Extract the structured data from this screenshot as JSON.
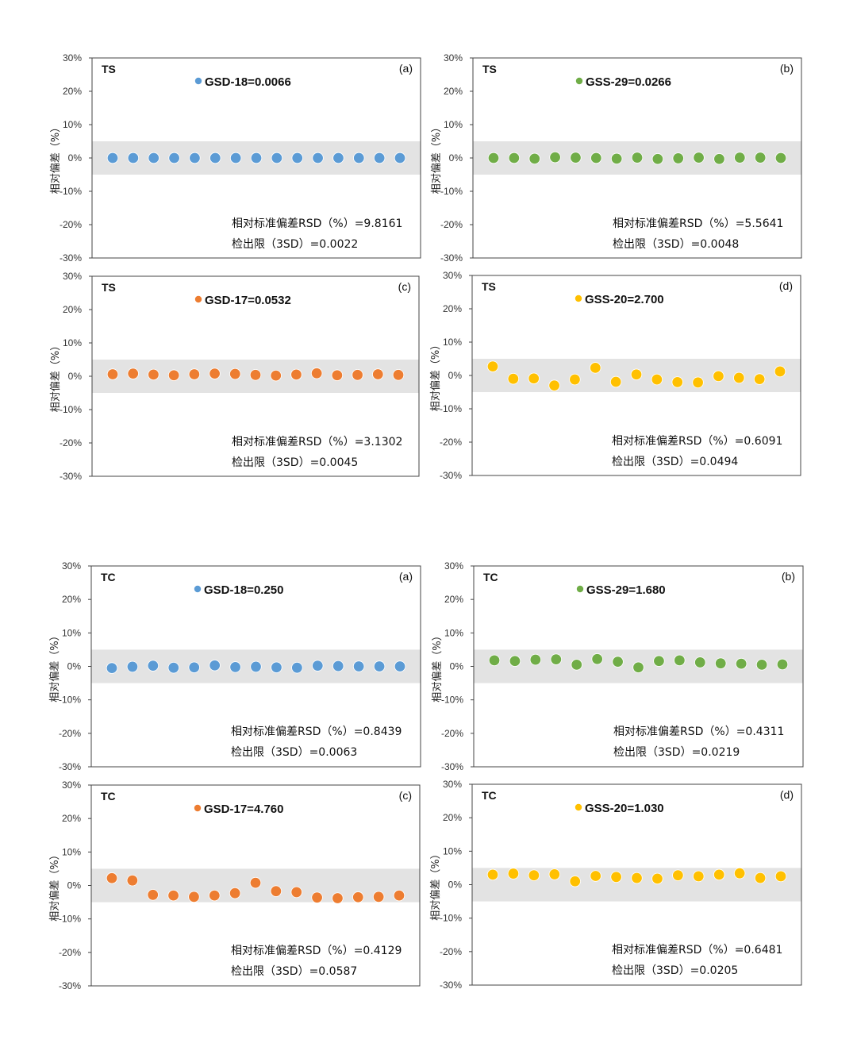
{
  "chart_data": [
    {
      "type": "scatter",
      "group": "TS",
      "panel": "(a)",
      "sample": "GSD-18=0.0066",
      "color": "#5B9BD5",
      "ylabel": "相对偏差（%）",
      "ylim": [
        -30,
        30
      ],
      "yticks": [
        "30%",
        "20%",
        "10%",
        "0%",
        "-10%",
        "-20%",
        "-30%"
      ],
      "band": [
        -5,
        5
      ],
      "values": [
        0,
        0,
        0,
        0,
        0,
        0,
        0,
        0,
        0,
        0,
        0,
        0,
        0,
        0,
        0
      ],
      "rsd_text": "相对标准偏差RSD（%）=9.8161",
      "lod_text": "检出限（3SD）=0.0022"
    },
    {
      "type": "scatter",
      "group": "TS",
      "panel": "(b)",
      "sample": "GSS-29=0.0266",
      "color": "#70AD47",
      "ylabel": "相对偏差（%）",
      "ylim": [
        -30,
        30
      ],
      "yticks": [
        "30%",
        "20%",
        "10%",
        "0%",
        "-10%",
        "-20%",
        "-30%"
      ],
      "band": [
        -5,
        5
      ],
      "values": [
        0,
        0,
        -0.2,
        0.2,
        0.1,
        0,
        -0.2,
        0.1,
        -0.3,
        -0.1,
        0.1,
        -0.3,
        0.1,
        0.1,
        0
      ],
      "rsd_text": "相对标准偏差RSD（%）=5.5641",
      "lod_text": "检出限（3SD）=0.0048"
    },
    {
      "type": "scatter",
      "group": "TS",
      "panel": "(c)",
      "sample": "GSD-17=0.0532",
      "color": "#ED7D31",
      "ylabel": "相对偏差（%）",
      "ylim": [
        -30,
        30
      ],
      "yticks": [
        "30%",
        "20%",
        "10%",
        "0%",
        "-10%",
        "-20%",
        "-30%"
      ],
      "band": [
        -5,
        5
      ],
      "values": [
        0.6,
        0.8,
        0.5,
        0.3,
        0.6,
        0.8,
        0.7,
        0.4,
        0.2,
        0.5,
        0.9,
        0.3,
        0.4,
        0.6,
        0.4
      ],
      "rsd_text": "相对标准偏差RSD（%）=3.1302",
      "lod_text": "检出限（3SD）=0.0045"
    },
    {
      "type": "scatter",
      "group": "TS",
      "panel": "(d)",
      "sample": "GSS-20=2.700",
      "color": "#FFC000",
      "ylabel": "相对偏差（%）",
      "ylim": [
        -30,
        30
      ],
      "yticks": [
        "30%",
        "20%",
        "10%",
        "0%",
        "-10%",
        "-20%",
        "-30%"
      ],
      "band": [
        -5,
        5
      ],
      "values": [
        2.7,
        -1.0,
        -0.9,
        -3.0,
        -1.2,
        2.3,
        -1.9,
        0.3,
        -1.2,
        -2.0,
        -2.1,
        -0.2,
        -0.7,
        -1.1,
        1.2
      ],
      "rsd_text": "相对标准偏差RSD（%）=0.6091",
      "lod_text": "检出限（3SD）=0.0494"
    },
    {
      "type": "scatter",
      "group": "TC",
      "panel": "(a)",
      "sample": "GSD-18=0.250",
      "color": "#5B9BD5",
      "ylabel": "相对偏差（%）",
      "ylim": [
        -30,
        30
      ],
      "yticks": [
        "30%",
        "20%",
        "10%",
        "0%",
        "-10%",
        "-20%",
        "-30%"
      ],
      "band": [
        -5,
        5
      ],
      "values": [
        -0.5,
        -0.1,
        0.2,
        -0.4,
        -0.3,
        0.3,
        -0.2,
        -0.1,
        -0.3,
        -0.4,
        0.2,
        0.1,
        0,
        0,
        0
      ],
      "rsd_text": "相对标准偏差RSD（%）=0.8439",
      "lod_text": "检出限（3SD）=0.0063"
    },
    {
      "type": "scatter",
      "group": "TC",
      "panel": "(b)",
      "sample": "GSS-29=1.680",
      "color": "#70AD47",
      "ylabel": "相对偏差（%）",
      "ylim": [
        -30,
        30
      ],
      "yticks": [
        "30%",
        "20%",
        "10%",
        "0%",
        "-10%",
        "-20%",
        "-30%"
      ],
      "band": [
        -5,
        5
      ],
      "values": [
        1.8,
        1.6,
        2.0,
        2.1,
        0.5,
        2.2,
        1.4,
        -0.3,
        1.6,
        1.8,
        1.2,
        0.9,
        0.8,
        0.5,
        0.6
      ],
      "rsd_text": "相对标准偏差RSD（%）=0.4311",
      "lod_text": "检出限（3SD）=0.0219"
    },
    {
      "type": "scatter",
      "group": "TC",
      "panel": "(c)",
      "sample": "GSD-17=4.760",
      "color": "#ED7D31",
      "ylabel": "相对偏差（%）",
      "ylim": [
        -30,
        30
      ],
      "yticks": [
        "30%",
        "20%",
        "10%",
        "0%",
        "-10%",
        "-20%",
        "-30%"
      ],
      "band": [
        -5,
        5
      ],
      "values": [
        2.2,
        1.5,
        -2.8,
        -3.0,
        -3.4,
        -3.0,
        -2.3,
        0.8,
        -1.7,
        -2.0,
        -3.6,
        -3.8,
        -3.5,
        -3.4,
        -3.0
      ],
      "rsd_text": "相对标准偏差RSD（%）=0.4129",
      "lod_text": "检出限（3SD）=0.0587"
    },
    {
      "type": "scatter",
      "group": "TC",
      "panel": "(d)",
      "sample": "GSS-20=1.030",
      "color": "#FFC000",
      "ylabel": "相对偏差（%）",
      "ylim": [
        -30,
        30
      ],
      "yticks": [
        "30%",
        "20%",
        "10%",
        "0%",
        "-10%",
        "-20%",
        "-30%"
      ],
      "band": [
        -5,
        5
      ],
      "values": [
        3.0,
        3.3,
        2.8,
        3.1,
        1.0,
        2.6,
        2.3,
        2.0,
        1.8,
        2.8,
        2.5,
        3.0,
        3.4,
        2.0,
        2.5
      ],
      "rsd_text": "相对标准偏差RSD（%）=0.6481",
      "lod_text": "检出限（3SD）=0.0205"
    }
  ]
}
